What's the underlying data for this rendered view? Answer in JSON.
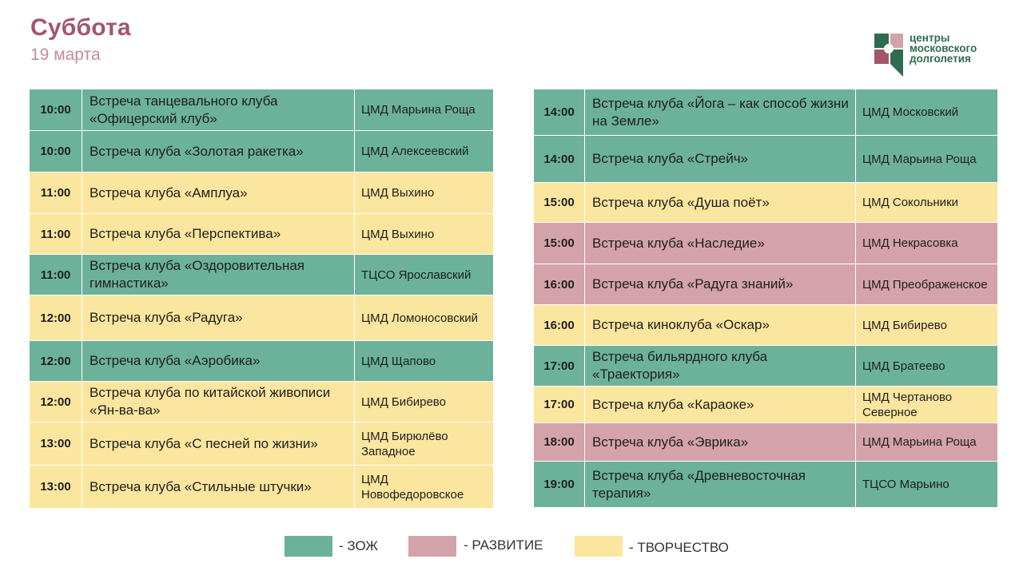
{
  "header": {
    "day": "Суббота",
    "date": "19 марта"
  },
  "logo": {
    "line1": "центры",
    "line2": "московского",
    "line3": "долголетия"
  },
  "colors": {
    "zozh": "#6cb29a",
    "razvitie": "#d4a2ab",
    "tvorchestvo": "#fbe69f",
    "title": "#a4556b"
  },
  "schedule_left": [
    {
      "time": "10:00",
      "event": "Встреча танцевального клуба «Офицерский клуб»",
      "place": "ЦМД Марьина Роща",
      "category": "zozh"
    },
    {
      "time": "10:00",
      "event": "Встреча клуба «Золотая ракетка»",
      "place": "ЦМД Алексеевский",
      "category": "zozh"
    },
    {
      "time": "11:00",
      "event": "Встреча клуба «Амплуа»",
      "place": "ЦМД Выхино",
      "category": "tvor"
    },
    {
      "time": "11:00",
      "event": "Встреча клуба «Перспектива»",
      "place": "ЦМД Выхино",
      "category": "tvor"
    },
    {
      "time": "11:00",
      "event": "Встреча клуба «Оздоровительная гимнастика»",
      "place": "ТЦСО Ярославский",
      "category": "zozh"
    },
    {
      "time": "12:00",
      "event": "Встреча клуба «Радуга»",
      "place": "ЦМД Ломоносовский",
      "category": "tvor"
    },
    {
      "time": "12:00",
      "event": "Встреча клуба «Аэробика»",
      "place": "ЦМД Щапово",
      "category": "zozh"
    },
    {
      "time": "12:00",
      "event": "Встреча клуба по китайской живописи «Ян-ва-ва»",
      "place": "ЦМД Бибирево",
      "category": "tvor"
    },
    {
      "time": "13:00",
      "event": "Встреча клуба «С песней по жизни»",
      "place": "ЦМД Бирюлёво Западное",
      "category": "tvor"
    },
    {
      "time": "13:00",
      "event": "Встреча клуба «Стильные штучки»",
      "place": "ЦМД Новофедоровское",
      "category": "tvor"
    }
  ],
  "schedule_right": [
    {
      "time": "14:00",
      "event": "Встреча клуба «Йога – как способ жизни на Земле»",
      "place": "ЦМД Московский",
      "category": "zozh"
    },
    {
      "time": "14:00",
      "event": "Встреча клуба «Стрейч»",
      "place": "ЦМД Марьина Роща",
      "category": "zozh"
    },
    {
      "time": "15:00",
      "event": "Встреча клуба «Душа поёт»",
      "place": "ЦМД Сокольники",
      "category": "tvor"
    },
    {
      "time": "15:00",
      "event": "Встреча клуба «Наследие»",
      "place": "ЦМД Некрасовка",
      "category": "razv"
    },
    {
      "time": "16:00",
      "event": "Встреча клуба «Радуга знаний»",
      "place": "ЦМД Преображенское",
      "category": "razv"
    },
    {
      "time": "16:00",
      "event": "Встреча киноклуба «Оскар»",
      "place": "ЦМД Бибирево",
      "category": "tvor"
    },
    {
      "time": "17:00",
      "event": "Встреча бильярдного клуба «Траектория»",
      "place": "ЦМД Братеево",
      "category": "zozh"
    },
    {
      "time": "17:00",
      "event": "Встреча клуба «Караоке»",
      "place": "ЦМД Чертаново Северное",
      "category": "tvor"
    },
    {
      "time": "18:00",
      "event": "Встреча клуба «Эврика»",
      "place": "ЦМД Марьина Роща",
      "category": "razv"
    },
    {
      "time": "19:00",
      "event": "Встреча клуба «Древневосточная терапия»",
      "place": "ТЦСО Марьино",
      "category": "zozh"
    }
  ],
  "legend": [
    {
      "label": "- ЗОЖ",
      "category": "zozh"
    },
    {
      "label": "- РАЗВИТИЕ",
      "category": "razv"
    },
    {
      "label": "- ТВОРЧЕСТВО",
      "category": "tvor"
    }
  ]
}
